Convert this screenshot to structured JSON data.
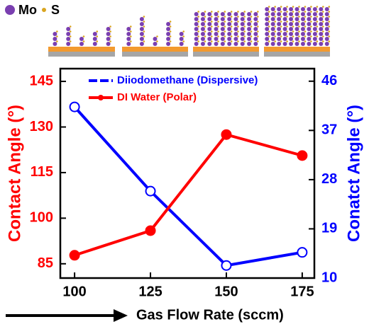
{
  "illustration_labels": [
    "Mo",
    "S"
  ],
  "chart_data": {
    "type": "line",
    "xlabel": "Gas Flow Rate (sccm)",
    "ylabel": "Contact Angle (°)",
    "y2label": "Conatct Angle (°)",
    "x": [
      100,
      125,
      150,
      175
    ],
    "xlim": [
      95.3,
      179
    ],
    "xticks": [
      100,
      125,
      150,
      175
    ],
    "ylim": [
      80.3,
      149.2
    ],
    "yticks": [
      85,
      100,
      115,
      130,
      145
    ],
    "y2lim": [
      10,
      48.3
    ],
    "y2ticks": [
      10,
      19,
      28,
      37,
      46
    ],
    "legend": "upper center",
    "series": [
      {
        "name": "Diiodomethane (Dispersive)",
        "color": "#0000ff",
        "axis": "y2",
        "values": [
          41.3,
          25.9,
          12.3,
          14.7
        ]
      },
      {
        "name": "DI Water (Polar)",
        "color": "#ff0000",
        "values": [
          87.8,
          95.9,
          127.5,
          120.6
        ]
      }
    ]
  }
}
